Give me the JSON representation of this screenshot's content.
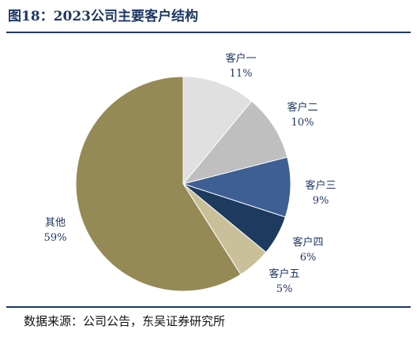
{
  "title": "图18：2023公司主要客户结构",
  "source": "数据来源：公司公告，东吴证券研究所",
  "chart_data": {
    "type": "pie",
    "title": "图18：2023公司主要客户结构",
    "slices": [
      {
        "label": "客户一",
        "value": 11,
        "value_label": "11%",
        "color": "#e0e0e0"
      },
      {
        "label": "客户二",
        "value": 10,
        "value_label": "10%",
        "color": "#bfbfbf"
      },
      {
        "label": "客户三",
        "value": 9,
        "value_label": "9%",
        "color": "#3e5f94"
      },
      {
        "label": "客户四",
        "value": 6,
        "value_label": "6%",
        "color": "#1e3a5f"
      },
      {
        "label": "客户五",
        "value": 5,
        "value_label": "5%",
        "color": "#c9c09a"
      },
      {
        "label": "其他",
        "value": 59,
        "value_label": "59%",
        "color": "#958a55"
      }
    ],
    "start": "12 o'clock",
    "direction": "clockwise",
    "legend": "none"
  }
}
